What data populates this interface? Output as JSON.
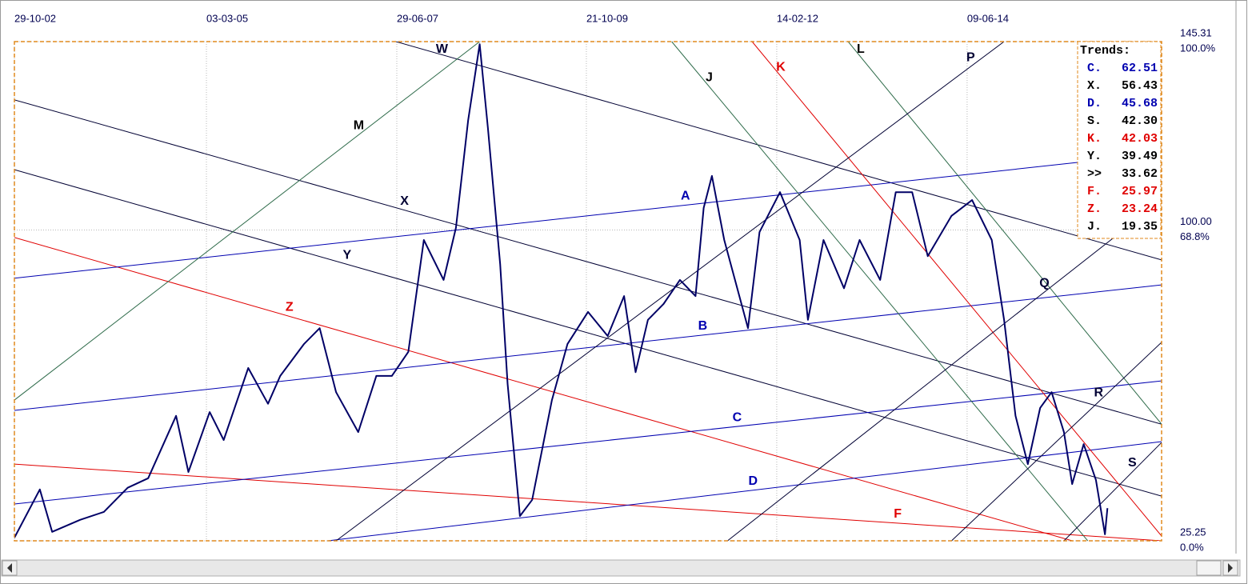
{
  "chart_data": {
    "type": "line",
    "xlim": [
      2002.83,
      2016.81
    ],
    "ylim": [
      25.25,
      145.31
    ],
    "xticks": [
      {
        "value": 2002.83,
        "label": "29-10-02"
      },
      {
        "value": 2005.17,
        "label": "03-03-05"
      },
      {
        "value": 2007.49,
        "label": "29-06-07"
      },
      {
        "value": 2009.8,
        "label": "21-10-09"
      },
      {
        "value": 2012.12,
        "label": "14-02-12"
      },
      {
        "value": 2014.44,
        "label": "09-06-14"
      }
    ],
    "yticks": [
      {
        "value": 145.31,
        "label": "145.31",
        "percent": "100.0%"
      },
      {
        "value": 100,
        "label": "100.00",
        "percent": "68.8%"
      },
      {
        "value": 25.25,
        "label": "25.25",
        "percent": "0.0%"
      }
    ],
    "grid": true,
    "series": [
      {
        "color": "#000066",
        "x": [
          2002.83,
          2003.14,
          2003.29,
          2003.63,
          2003.92,
          2004.21,
          2004.46,
          2004.8,
          2004.95,
          2005.21,
          2005.38,
          2005.68,
          2005.92,
          2006.07,
          2006.36,
          2006.55,
          2006.75,
          2007.02,
          2007.24,
          2007.43,
          2007.63,
          2007.82,
          2008.06,
          2008.21,
          2008.36,
          2008.5,
          2008.6,
          2008.75,
          2008.84,
          2008.99,
          2009.14,
          2009.38,
          2009.57,
          2009.82,
          2010.06,
          2010.26,
          2010.4,
          2010.55,
          2010.74,
          2010.94,
          2011.13,
          2011.23,
          2011.33,
          2011.48,
          2011.77,
          2011.91,
          2012.16,
          2012.4,
          2012.5,
          2012.69,
          2012.94,
          2013.13,
          2013.38,
          2013.57,
          2013.77,
          2013.96,
          2014.25,
          2014.5,
          2014.74,
          2014.89,
          2015.03,
          2015.18,
          2015.33,
          2015.47,
          2015.62,
          2015.72,
          2015.86,
          2016.01,
          2016.12,
          2016.15
        ],
        "values": [
          26.0,
          37.6,
          27.4,
          30.3,
          32.2,
          38.0,
          40.3,
          55.3,
          41.8,
          56.2,
          49.5,
          66.8,
          58.2,
          64.9,
          72.6,
          76.4,
          61.0,
          51.4,
          64.9,
          64.9,
          70.7,
          97.6,
          88.0,
          100.5,
          126.4,
          144.7,
          124.5,
          91.8,
          63.0,
          31.2,
          35.1,
          59.1,
          72.6,
          80.3,
          74.5,
          84.1,
          65.8,
          78.4,
          82.2,
          88.0,
          84.1,
          105.3,
          113.0,
          97.6,
          76.4,
          99.5,
          109.1,
          97.6,
          78.4,
          97.6,
          86.0,
          97.6,
          88.0,
          109.1,
          109.1,
          93.7,
          103.4,
          107.2,
          97.6,
          78.4,
          55.3,
          43.7,
          57.2,
          61.0,
          51.4,
          38.9,
          48.5,
          39.9,
          26.8,
          33.1
        ]
      }
    ],
    "trendlines": [
      {
        "label": "W",
        "color": "#000033",
        "x": [
          2007.48,
          2016.81
        ],
        "y": [
          145.31,
          92.8
        ]
      },
      {
        "label": "X",
        "color": "#000033",
        "x": [
          2002.83,
          2016.81
        ],
        "y": [
          131.3,
          53.3
        ]
      },
      {
        "label": "Y",
        "color": "#000033",
        "x": [
          2002.83,
          2016.81
        ],
        "y": [
          114.5,
          36.0
        ]
      },
      {
        "label": "Z",
        "color": "#e00000",
        "x": [
          2002.83,
          2015.72
        ],
        "y": [
          98.2,
          25.25
        ]
      },
      {
        "label": "F",
        "color": "#e00000",
        "x": [
          2002.83,
          2016.81
        ],
        "y": [
          43.7,
          25.25
        ]
      },
      {
        "label": "A",
        "color": "#0000b0",
        "x": [
          2002.83,
          2015.81
        ],
        "y": [
          88.4,
          116.3
        ]
      },
      {
        "label": "B",
        "color": "#0000b0",
        "x": [
          2002.83,
          2016.81
        ],
        "y": [
          56.6,
          86.8
        ]
      },
      {
        "label": "C",
        "color": "#0000b0",
        "x": [
          2002.83,
          2016.81
        ],
        "y": [
          34.1,
          63.7
        ]
      },
      {
        "label": "D",
        "color": "#0000b0",
        "x": [
          2006.65,
          2016.81
        ],
        "y": [
          25.25,
          49.1
        ]
      },
      {
        "label": "M",
        "color": "#2e6b4a",
        "x": [
          2002.83,
          2008.5
        ],
        "y": [
          59.1,
          145.31
        ]
      },
      {
        "label": "J",
        "color": "#2e6b4a",
        "x": [
          2010.84,
          2015.91
        ],
        "y": [
          145.31,
          25.25
        ]
      },
      {
        "label": "L",
        "color": "#2e6b4a",
        "x": [
          2012.99,
          2016.81
        ],
        "y": [
          145.31,
          53.3
        ]
      },
      {
        "label": "K",
        "color": "#e00000",
        "x": [
          2011.82,
          2016.81
        ],
        "y": [
          145.31,
          26.4
        ]
      },
      {
        "label": "P",
        "color": "#000033",
        "x": [
          2006.75,
          2014.89
        ],
        "y": [
          25.25,
          145.31
        ]
      },
      {
        "label": "Q",
        "color": "#000033",
        "x": [
          2011.52,
          2016.81
        ],
        "y": [
          25.25,
          107.2
        ]
      },
      {
        "label": "R",
        "color": "#000033",
        "x": [
          2014.25,
          2016.81
        ],
        "y": [
          25.25,
          73.0
        ]
      },
      {
        "label": "S",
        "color": "#000033",
        "x": [
          2015.62,
          2016.81
        ],
        "y": [
          25.25,
          48.9
        ]
      }
    ],
    "legend": {
      "title": "Trends:",
      "items": [
        {
          "name": "C.",
          "value": "62.51",
          "color": "#0000b0"
        },
        {
          "name": "X.",
          "value": "56.43",
          "color": "#000000"
        },
        {
          "name": "D.",
          "value": "45.68",
          "color": "#0000b0"
        },
        {
          "name": "S.",
          "value": "42.30",
          "color": "#000000"
        },
        {
          "name": "K.",
          "value": "42.03",
          "color": "#e00000"
        },
        {
          "name": "Y.",
          "value": "39.49",
          "color": "#000000"
        },
        {
          "name": ">>",
          "value": "33.62",
          "color": "#000000"
        },
        {
          "name": "F.",
          "value": "25.97",
          "color": "#e00000"
        },
        {
          "name": "Z.",
          "value": "23.24",
          "color": "#e00000"
        },
        {
          "name": "J.",
          "value": "19.35",
          "color": "#000000"
        }
      ]
    }
  }
}
